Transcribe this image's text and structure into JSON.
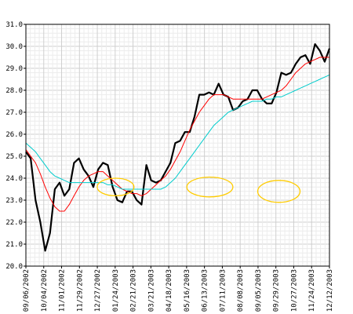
{
  "chart_data": {
    "type": "line",
    "title": "",
    "xlabel": "",
    "ylabel": "",
    "x_tick_labels": [
      "09/06/2002",
      "10/04/2002",
      "11/01/2002",
      "11/29/2002",
      "12/27/2002",
      "01/24/2003",
      "02/21/2003",
      "03/21/2003",
      "04/18/2003",
      "05/16/2003",
      "06/13/2003",
      "07/11/2003",
      "08/08/2003",
      "09/05/2003",
      "09/29/2003",
      "10/27/2003",
      "11/24/2003",
      "12/12/2003"
    ],
    "x_range": [
      0,
      66
    ],
    "ylim": [
      20.0,
      31.0
    ],
    "y_ticks": [
      "20.0",
      "21.0",
      "22.0",
      "23.0",
      "24.0",
      "25.0",
      "26.0",
      "27.0",
      "28.0",
      "29.0",
      "30.0",
      "31.0"
    ],
    "grid": true,
    "series": [
      {
        "color": "#000000",
        "values": [
          25.2,
          24.9,
          23.0,
          22.0,
          20.7,
          21.5,
          23.5,
          23.8,
          23.2,
          23.5,
          24.7,
          24.9,
          24.4,
          24.1,
          23.6,
          24.4,
          24.7,
          24.6,
          23.6,
          23.0,
          22.9,
          23.4,
          23.4,
          23.0,
          22.8,
          24.6,
          23.9,
          23.8,
          23.9,
          24.3,
          24.7,
          25.6,
          25.7,
          26.1,
          26.1,
          26.8,
          27.8,
          27.8,
          27.9,
          27.8,
          28.3,
          27.8,
          27.7,
          27.1,
          27.2,
          27.5,
          27.6,
          28.0,
          28.0,
          27.6,
          27.4,
          27.4,
          27.9,
          28.8,
          28.7,
          28.8,
          29.2,
          29.5,
          29.6,
          29.2,
          30.1,
          29.8,
          29.3,
          29.9
        ]
      },
      {
        "color": "#ff0000",
        "values": [
          25.3,
          25.0,
          24.7,
          24.2,
          23.6,
          23.1,
          22.7,
          22.5,
          22.5,
          22.8,
          23.2,
          23.6,
          23.9,
          24.1,
          24.2,
          24.3,
          24.3,
          24.1,
          23.9,
          23.7,
          23.5,
          23.4,
          23.3,
          23.3,
          23.2,
          23.3,
          23.5,
          23.7,
          23.9,
          24.1,
          24.4,
          24.8,
          25.2,
          25.7,
          26.2,
          26.6,
          27.0,
          27.3,
          27.6,
          27.8,
          27.8,
          27.8,
          27.7,
          27.6,
          27.6,
          27.6,
          27.6,
          27.6,
          27.6,
          27.6,
          27.7,
          27.8,
          27.9,
          28.0,
          28.2,
          28.5,
          28.8,
          29.0,
          29.2,
          29.3,
          29.4,
          29.5,
          29.5,
          29.5
        ]
      },
      {
        "color": "#00cccc",
        "values": [
          25.6,
          25.4,
          25.2,
          24.9,
          24.6,
          24.3,
          24.1,
          24.0,
          23.9,
          23.8,
          23.8,
          23.8,
          23.8,
          23.8,
          23.8,
          23.8,
          23.8,
          23.7,
          23.7,
          23.6,
          23.5,
          23.5,
          23.5,
          23.5,
          23.5,
          23.5,
          23.5,
          23.5,
          23.5,
          23.6,
          23.8,
          24.0,
          24.3,
          24.6,
          24.9,
          25.2,
          25.5,
          25.8,
          26.1,
          26.4,
          26.6,
          26.8,
          27.0,
          27.1,
          27.2,
          27.3,
          27.4,
          27.5,
          27.5,
          27.5,
          27.6,
          27.6,
          27.7,
          27.7,
          27.8,
          27.9,
          28.0,
          28.1,
          28.2,
          28.3,
          28.4,
          28.5,
          28.6,
          28.7
        ]
      }
    ],
    "annotations": [
      {
        "shape": "ellipse",
        "color": "#ffcc00",
        "cx": 19.5,
        "cy": 23.6,
        "rx": 4.0,
        "ry": 0.4
      },
      {
        "shape": "ellipse",
        "color": "#ffcc00",
        "cx": 40.0,
        "cy": 23.6,
        "rx": 5.0,
        "ry": 0.45
      },
      {
        "shape": "ellipse",
        "color": "#ffcc00",
        "cx": 55.0,
        "cy": 23.4,
        "rx": 4.6,
        "ry": 0.5
      }
    ]
  }
}
